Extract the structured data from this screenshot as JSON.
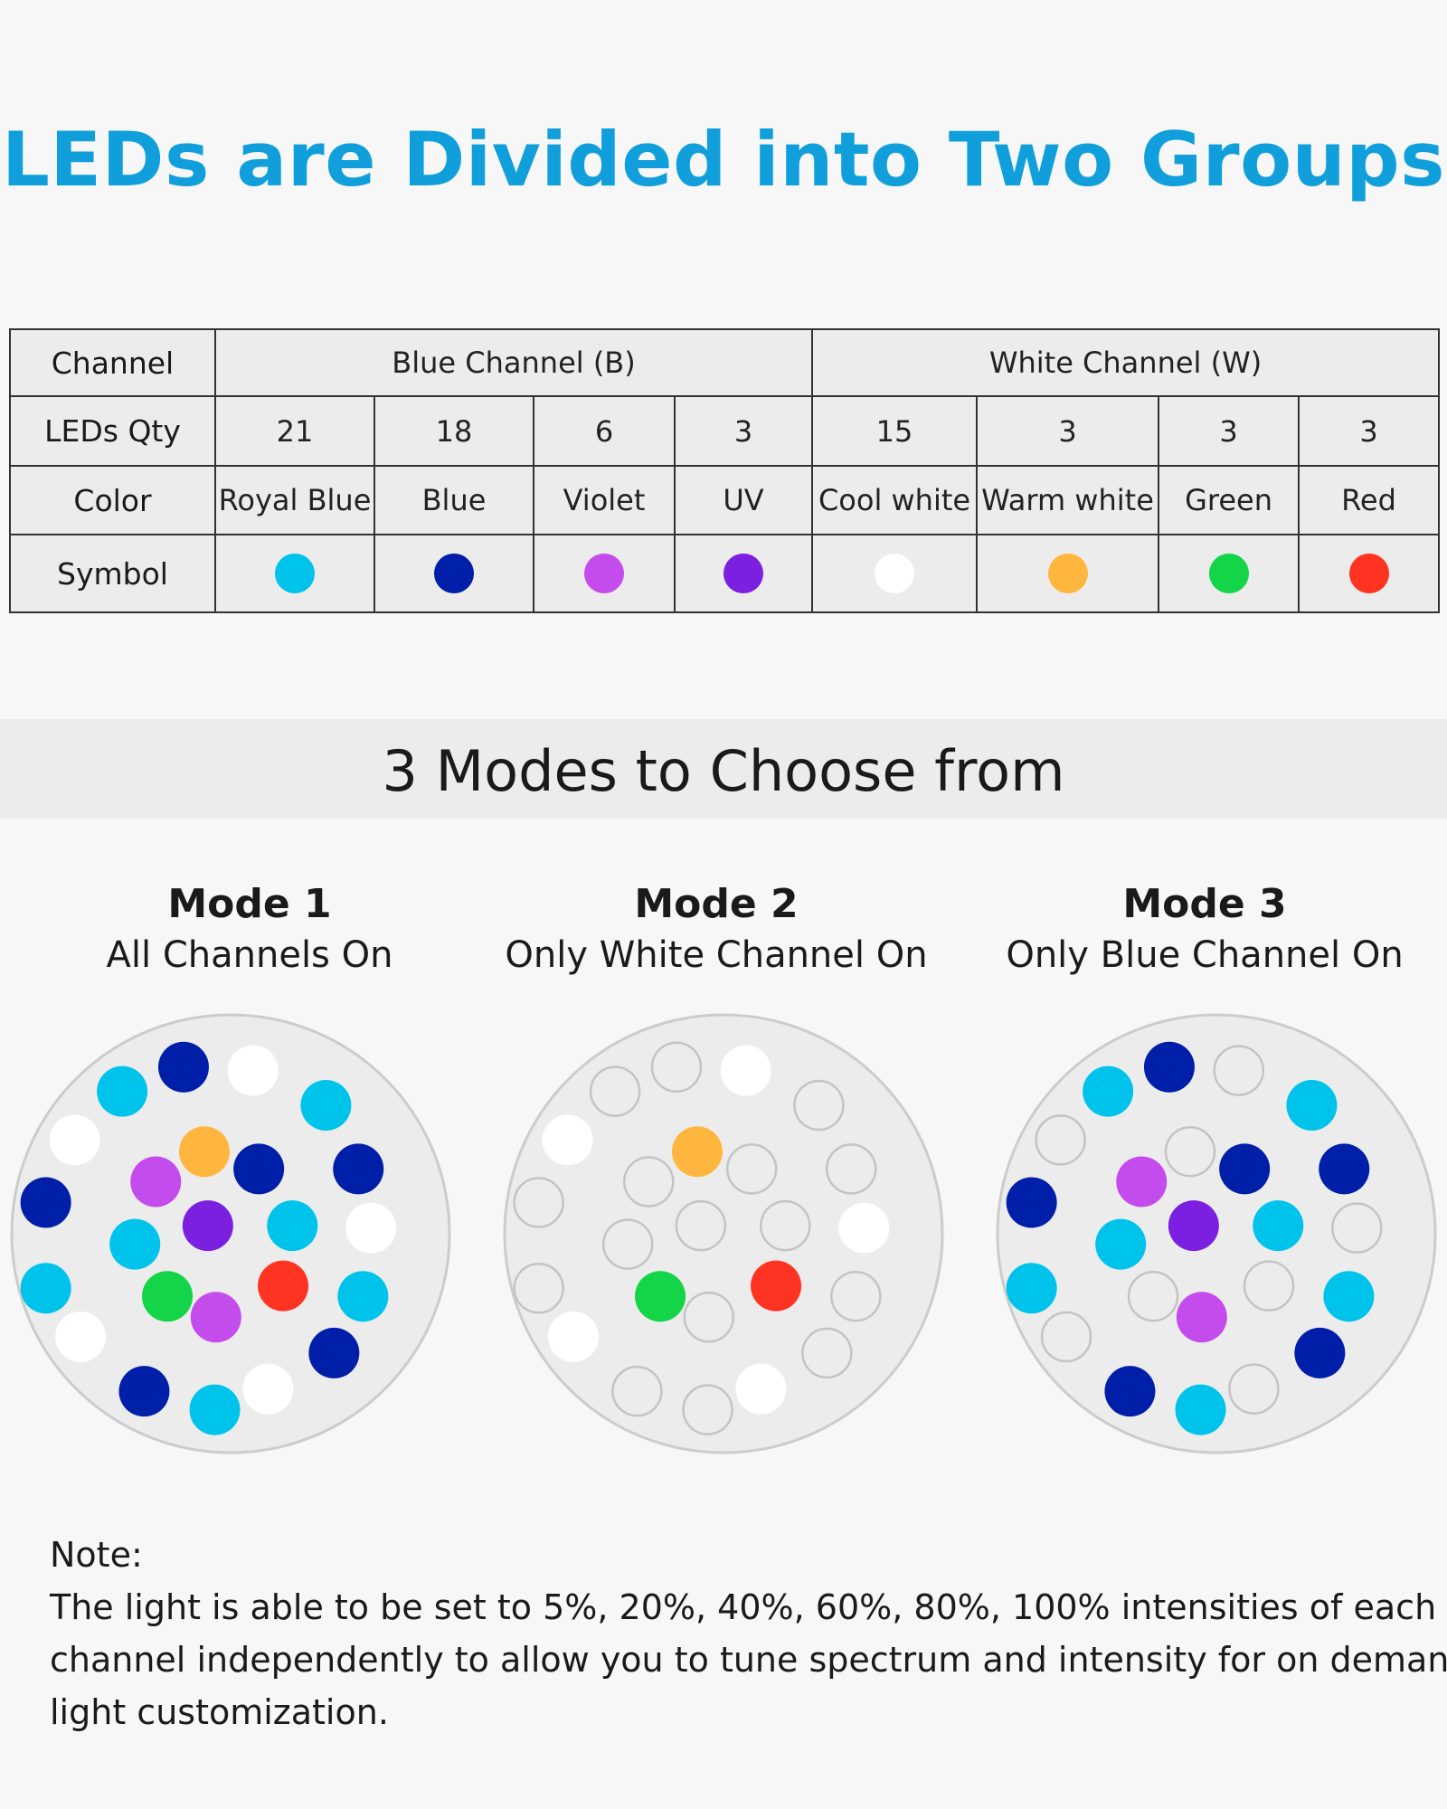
{
  "title": "LEDs are Divided into Two Groups",
  "table": {
    "headers": {
      "channel": "Channel",
      "leds_qty": "LEDs Qty",
      "color": "Color",
      "symbol": "Symbol"
    },
    "groups": [
      "Blue Channel (B)",
      "White Channel (W)"
    ],
    "leds": [
      {
        "qty": "21",
        "color": "Royal Blue",
        "hex": "#00c3ec"
      },
      {
        "qty": "18",
        "color": "Blue",
        "hex": "#001fa8"
      },
      {
        "qty": "6",
        "color": "Violet",
        "hex": "#c44cec"
      },
      {
        "qty": "3",
        "color": "UV",
        "hex": "#7b1fe0"
      },
      {
        "qty": "15",
        "color": "Cool white",
        "hex": "#ffffff"
      },
      {
        "qty": "3",
        "color": "Warm white",
        "hex": "#ffb63f"
      },
      {
        "qty": "3",
        "color": "Green",
        "hex": "#14d447"
      },
      {
        "qty": "3",
        "color": "Red",
        "hex": "#ff3322"
      }
    ]
  },
  "modes_section": {
    "title": "3 Modes to Choose from",
    "modes": [
      {
        "name": "Mode 1",
        "desc": "All Channels On"
      },
      {
        "name": "Mode 2",
        "desc": "Only White Channel On"
      },
      {
        "name": "Mode 3",
        "desc": "Only Blue Channel On"
      }
    ]
  },
  "note": {
    "label": "Note:",
    "lines": [
      "The light is able to be set to 5%, 20%, 40%, 60%, 80%, 100% intensities of each",
      "channel independently to allow you to tune spectrum and intensity for on deman",
      "light customization."
    ]
  },
  "colors": {
    "title": "#109fdb",
    "off_led": "#ececec",
    "off_led_border": "#c4c4c4",
    "disc_fill": "#ececec",
    "disc_border": "#cccccc"
  }
}
